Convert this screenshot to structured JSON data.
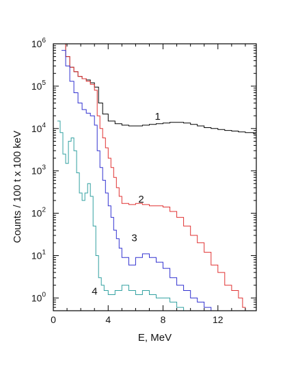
{
  "chart_data": {
    "type": "line",
    "title": "",
    "xlabel": "E, MeV",
    "ylabel": "Counts / 100 t x 100 keV",
    "xlim": [
      0,
      14.8
    ],
    "ylim": [
      0.5,
      1000000
    ],
    "y_scale": "log",
    "grid": false,
    "legend": "none",
    "x_ticks": [
      "0",
      "4",
      "8",
      "12"
    ],
    "x_tick_values": [
      0,
      4,
      8,
      12
    ],
    "y_ticks": [
      {
        "base": "10",
        "exp": "0",
        "value": 1
      },
      {
        "base": "10",
        "exp": "1",
        "value": 10
      },
      {
        "base": "10",
        "exp": "2",
        "value": 100
      },
      {
        "base": "10",
        "exp": "3",
        "value": 1000
      },
      {
        "base": "10",
        "exp": "4",
        "value": 10000
      },
      {
        "base": "10",
        "exp": "5",
        "value": 100000
      },
      {
        "base": "10",
        "exp": "6",
        "value": 1000000
      }
    ],
    "series": [
      {
        "label": "1",
        "color": "#000000",
        "label_pos": [
          7.4,
          16000
        ],
        "x": [
          0.6,
          0.9,
          1.2,
          1.5,
          1.8,
          2.1,
          2.4,
          2.7,
          3.0,
          3.3,
          3.6,
          4.0,
          4.5,
          5.0,
          5.5,
          6.0,
          6.5,
          7.0,
          7.5,
          8.0,
          8.5,
          9.0,
          9.5,
          10.0,
          10.5,
          11.0,
          11.5,
          12.0,
          12.5,
          13.0,
          13.5,
          14.0,
          14.6
        ],
        "y": [
          1000000,
          500000,
          280000,
          220000,
          170000,
          150000,
          140000,
          120000,
          95000,
          40000,
          22000,
          15000,
          13000,
          12000,
          11500,
          11500,
          12000,
          12500,
          13000,
          13500,
          14000,
          14000,
          13500,
          12500,
          11500,
          10500,
          10000,
          9500,
          9000,
          8700,
          8300,
          8000,
          7500
        ]
      },
      {
        "label": "2",
        "color": "#e03030",
        "label_pos": [
          6.2,
          180
        ],
        "x": [
          0.6,
          0.9,
          1.2,
          1.5,
          1.8,
          2.1,
          2.4,
          2.7,
          3.0,
          3.2,
          3.4,
          3.6,
          3.8,
          4.0,
          4.2,
          4.4,
          4.6,
          4.8,
          5.0,
          5.5,
          6.0,
          6.5,
          7.0,
          7.5,
          8.0,
          8.5,
          9.0,
          9.5,
          10.0,
          10.5,
          11.0,
          11.5,
          12.0,
          12.5,
          13.0,
          13.5,
          13.8,
          14.0
        ],
        "y": [
          1000000,
          500000,
          280000,
          220000,
          170000,
          150000,
          130000,
          110000,
          80000,
          20000,
          10000,
          6000,
          3500,
          2000,
          1200,
          700,
          400,
          250,
          170,
          160,
          170,
          160,
          150,
          150,
          140,
          110,
          80,
          50,
          30,
          20,
          12,
          6,
          4,
          2,
          1.5,
          1,
          0.6,
          0.5
        ]
      },
      {
        "label": "3",
        "color": "#3030d0",
        "label_pos": [
          5.7,
          22
        ],
        "x": [
          0.6,
          0.9,
          1.2,
          1.5,
          1.8,
          2.1,
          2.4,
          2.7,
          3.0,
          3.2,
          3.4,
          3.6,
          3.8,
          4.0,
          4.2,
          4.4,
          4.6,
          4.8,
          5.0,
          5.5,
          6.0,
          6.5,
          7.0,
          7.5,
          8.0,
          8.5,
          9.0,
          9.5,
          10.0,
          10.5,
          11.0,
          11.5
        ],
        "y": [
          700000,
          300000,
          130000,
          70000,
          40000,
          28000,
          23000,
          20000,
          12000,
          3000,
          1200,
          600,
          300,
          150,
          80,
          40,
          25,
          15,
          9,
          6,
          9,
          11,
          9,
          7,
          5,
          3,
          2,
          1.5,
          1,
          0.8,
          0.6,
          0.5
        ]
      },
      {
        "label": "4",
        "color": "#30a0a0",
        "label_pos": [
          2.8,
          1.2
        ],
        "x": [
          0.3,
          0.5,
          0.7,
          0.9,
          1.1,
          1.3,
          1.5,
          1.7,
          1.9,
          2.1,
          2.3,
          2.5,
          2.7,
          2.9,
          3.1,
          3.3,
          3.5,
          3.7,
          4.0,
          4.5,
          5.0,
          5.5,
          6.0,
          6.5,
          7.0,
          7.5,
          8.0,
          8.5,
          9.0,
          9.5
        ],
        "y": [
          15000,
          8000,
          2500,
          1500,
          5000,
          6000,
          3000,
          900,
          300,
          200,
          300,
          500,
          250,
          50,
          10,
          3,
          2,
          1.5,
          1.2,
          1.5,
          2,
          1.5,
          1.2,
          1.5,
          1.2,
          1,
          1,
          0.8,
          0.6,
          0.5
        ]
      }
    ]
  }
}
